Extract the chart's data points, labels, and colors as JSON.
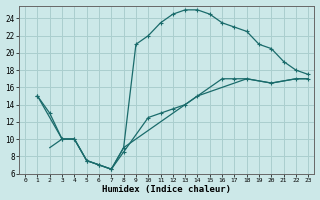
{
  "xlabel": "Humidex (Indice chaleur)",
  "xlim": [
    -0.5,
    23.5
  ],
  "ylim": [
    6,
    25.5
  ],
  "xticks": [
    0,
    1,
    2,
    3,
    4,
    5,
    6,
    7,
    8,
    9,
    10,
    11,
    12,
    13,
    14,
    15,
    16,
    17,
    18,
    19,
    20,
    21,
    22,
    23
  ],
  "yticks": [
    6,
    8,
    10,
    12,
    14,
    16,
    18,
    20,
    22,
    24
  ],
  "background_color": "#cce8e8",
  "grid_color": "#aacece",
  "line_color": "#1a6b6b",
  "line1_x": [
    1,
    2,
    3,
    4,
    5,
    6,
    7,
    8,
    9,
    10,
    11,
    12,
    13,
    14,
    15,
    16,
    17,
    18,
    19,
    20,
    21,
    22,
    23
  ],
  "line1_y": [
    15,
    13,
    10,
    10,
    7.5,
    7,
    6.5,
    9,
    21,
    22,
    23.5,
    24.5,
    25,
    25,
    24.5,
    23.5,
    23,
    22.5,
    21,
    20.5,
    19,
    18,
    17.5
  ],
  "line2_x": [
    1,
    3,
    4,
    5,
    6,
    7,
    8,
    10,
    11,
    12,
    13,
    14,
    16,
    17,
    18,
    20,
    22,
    23
  ],
  "line2_y": [
    15,
    10,
    10,
    7.5,
    7,
    6.5,
    8.5,
    12.5,
    13,
    13.5,
    14,
    15,
    17,
    17,
    17,
    16.5,
    17,
    17
  ],
  "line3_x": [
    2,
    3,
    4,
    5,
    6,
    7,
    8,
    10,
    12,
    14,
    16,
    18,
    20,
    22,
    23
  ],
  "line3_y": [
    9,
    10,
    10,
    7.5,
    7,
    6.5,
    9,
    11,
    13,
    15,
    16,
    17,
    16.5,
    17,
    17
  ]
}
